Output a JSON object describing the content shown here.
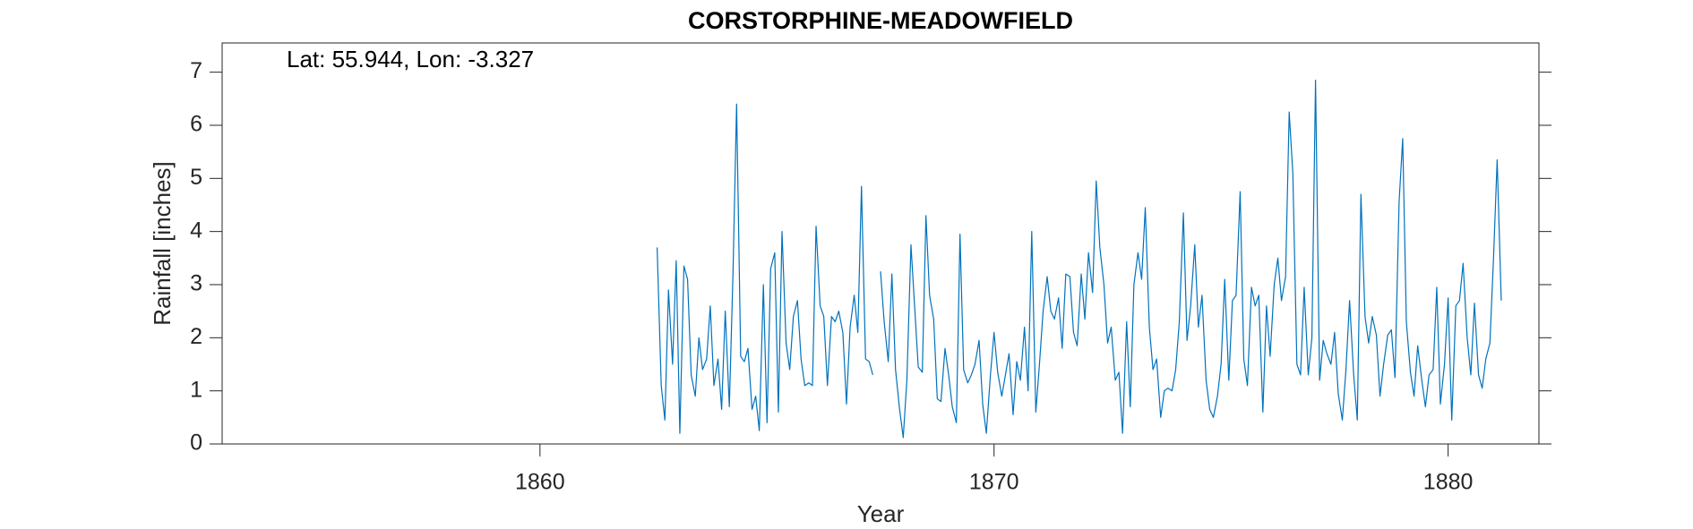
{
  "chart_data": {
    "type": "line",
    "title": "CORSTORPHINE-MEADOWFIELD",
    "annotation": "Lat: 55.944, Lon: -3.327",
    "x_label": "Year",
    "y_label": "Rainfall [inches]",
    "xlim": [
      1853,
      1882
    ],
    "ylim": [
      0,
      7.55
    ],
    "xticks": [
      1860,
      1870,
      1880
    ],
    "yticks": [
      0,
      1,
      2,
      3,
      4,
      5,
      6,
      7
    ],
    "x": [
      1862.58,
      1862.67,
      1862.75,
      1862.83,
      1862.92,
      1863,
      1863.08,
      1863.17,
      1863.25,
      1863.33,
      1863.42,
      1863.5,
      1863.58,
      1863.67,
      1863.75,
      1863.83,
      1863.92,
      1864,
      1864.08,
      1864.17,
      1864.25,
      1864.33,
      1864.42,
      1864.5,
      1864.58,
      1864.67,
      1864.75,
      1864.83,
      1864.92,
      1865,
      1865.08,
      1865.17,
      1865.25,
      1865.33,
      1865.42,
      1865.5,
      1865.58,
      1865.67,
      1865.75,
      1865.83,
      1865.92,
      1866,
      1866.08,
      1866.17,
      1866.25,
      1866.33,
      1866.42,
      1866.5,
      1866.58,
      1866.67,
      1866.75,
      1866.83,
      1866.92,
      1867,
      1867.08,
      1867.17,
      1867.25,
      1867.33,
      1867.42,
      1867.5,
      1867.58,
      1867.67,
      1867.75,
      1867.83,
      1867.92,
      1868,
      1868.08,
      1868.17,
      1868.25,
      1868.33,
      1868.42,
      1868.5,
      1868.58,
      1868.67,
      1868.75,
      1868.83,
      1868.92,
      1869,
      1869.08,
      1869.17,
      1869.25,
      1869.33,
      1869.42,
      1869.5,
      1869.58,
      1869.67,
      1869.75,
      1869.83,
      1869.92,
      1870,
      1870.08,
      1870.17,
      1870.25,
      1870.33,
      1870.42,
      1870.5,
      1870.58,
      1870.67,
      1870.75,
      1870.83,
      1870.92,
      1871,
      1871.08,
      1871.17,
      1871.25,
      1871.33,
      1871.42,
      1871.5,
      1871.58,
      1871.67,
      1871.75,
      1871.83,
      1871.92,
      1872,
      1872.08,
      1872.17,
      1872.25,
      1872.33,
      1872.42,
      1872.5,
      1872.58,
      1872.67,
      1872.75,
      1872.83,
      1872.92,
      1873,
      1873.08,
      1873.17,
      1873.25,
      1873.33,
      1873.42,
      1873.5,
      1873.58,
      1873.67,
      1873.75,
      1873.83,
      1873.92,
      1874,
      1874.08,
      1874.17,
      1874.25,
      1874.33,
      1874.42,
      1874.5,
      1874.58,
      1874.67,
      1874.75,
      1874.83,
      1874.92,
      1875,
      1875.08,
      1875.17,
      1875.25,
      1875.33,
      1875.42,
      1875.5,
      1875.58,
      1875.67,
      1875.75,
      1875.83,
      1875.92,
      1876,
      1876.08,
      1876.17,
      1876.25,
      1876.33,
      1876.42,
      1876.5,
      1876.58,
      1876.67,
      1876.75,
      1876.83,
      1876.92,
      1877,
      1877.08,
      1877.17,
      1877.25,
      1877.33,
      1877.42,
      1877.5,
      1877.58,
      1877.67,
      1877.75,
      1877.83,
      1877.92,
      1878,
      1878.08,
      1878.17,
      1878.25,
      1878.33,
      1878.42,
      1878.5,
      1878.58,
      1878.67,
      1878.75,
      1878.83,
      1878.92,
      1879,
      1879.08,
      1879.17,
      1879.25,
      1879.33,
      1879.42,
      1879.5,
      1879.58,
      1879.67,
      1879.75,
      1879.83,
      1879.92,
      1880,
      1880.08,
      1880.17,
      1880.25,
      1880.33,
      1880.42,
      1880.5,
      1880.58,
      1880.67,
      1880.75,
      1880.83,
      1880.92,
      1881,
      1881.08,
      1881.17
    ],
    "series": [
      {
        "color": "#0072bd",
        "values": [
          3.7,
          1.1,
          0.45,
          2.9,
          1.5,
          3.45,
          0.2,
          3.35,
          3.1,
          1.3,
          0.9,
          2.0,
          1.4,
          1.6,
          2.6,
          1.1,
          1.6,
          0.65,
          2.5,
          0.7,
          3.2,
          6.4,
          1.65,
          1.55,
          1.8,
          0.65,
          0.9,
          0.25,
          3.0,
          0.4,
          3.3,
          3.6,
          0.6,
          4.0,
          1.9,
          1.4,
          2.4,
          2.7,
          1.6,
          1.1,
          1.15,
          1.1,
          4.1,
          2.6,
          2.4,
          1.1,
          2.4,
          2.3,
          2.5,
          2.1,
          0.75,
          2.2,
          2.8,
          2.1,
          4.85,
          1.6,
          1.55,
          1.3,
          null,
          3.25,
          2.3,
          1.55,
          3.2,
          1.4,
          0.65,
          0.12,
          1.2,
          3.75,
          2.6,
          1.45,
          1.35,
          4.3,
          2.8,
          2.35,
          0.85,
          0.8,
          1.8,
          1.3,
          0.7,
          0.4,
          3.95,
          1.4,
          1.15,
          1.3,
          1.5,
          1.95,
          0.75,
          0.2,
          1.3,
          2.1,
          1.35,
          0.9,
          1.3,
          1.7,
          0.55,
          1.55,
          1.2,
          2.2,
          1.0,
          4.0,
          0.6,
          1.5,
          2.5,
          3.15,
          2.5,
          2.35,
          2.75,
          1.8,
          3.2,
          3.15,
          2.1,
          1.85,
          3.2,
          2.35,
          3.6,
          2.85,
          4.95,
          3.7,
          3.0,
          1.9,
          2.2,
          1.2,
          1.35,
          0.2,
          2.3,
          0.7,
          3.0,
          3.6,
          3.1,
          4.45,
          2.2,
          1.4,
          1.6,
          0.5,
          1.0,
          1.05,
          1.0,
          1.4,
          2.3,
          4.35,
          1.95,
          2.6,
          3.75,
          2.2,
          2.8,
          1.2,
          0.65,
          0.5,
          0.9,
          1.5,
          3.1,
          1.2,
          2.7,
          2.8,
          4.75,
          1.6,
          1.1,
          2.95,
          2.6,
          2.8,
          0.6,
          2.6,
          1.65,
          3.0,
          3.5,
          2.7,
          3.15,
          6.25,
          5.1,
          1.5,
          1.3,
          2.95,
          1.3,
          2.0,
          6.85,
          1.2,
          1.95,
          1.7,
          1.5,
          2.1,
          0.95,
          0.45,
          1.4,
          2.7,
          1.3,
          0.45,
          4.7,
          2.4,
          1.9,
          2.4,
          2.05,
          0.9,
          1.5,
          2.05,
          2.15,
          1.25,
          4.55,
          5.75,
          2.3,
          1.35,
          0.9,
          1.85,
          1.2,
          0.7,
          1.3,
          1.4,
          2.95,
          0.75,
          1.5,
          2.75,
          0.45,
          2.6,
          2.7,
          3.4,
          2.0,
          1.3,
          2.65,
          1.3,
          1.05,
          1.6,
          1.9,
          3.5,
          5.35,
          2.7
        ]
      }
    ],
    "grid": false
  }
}
